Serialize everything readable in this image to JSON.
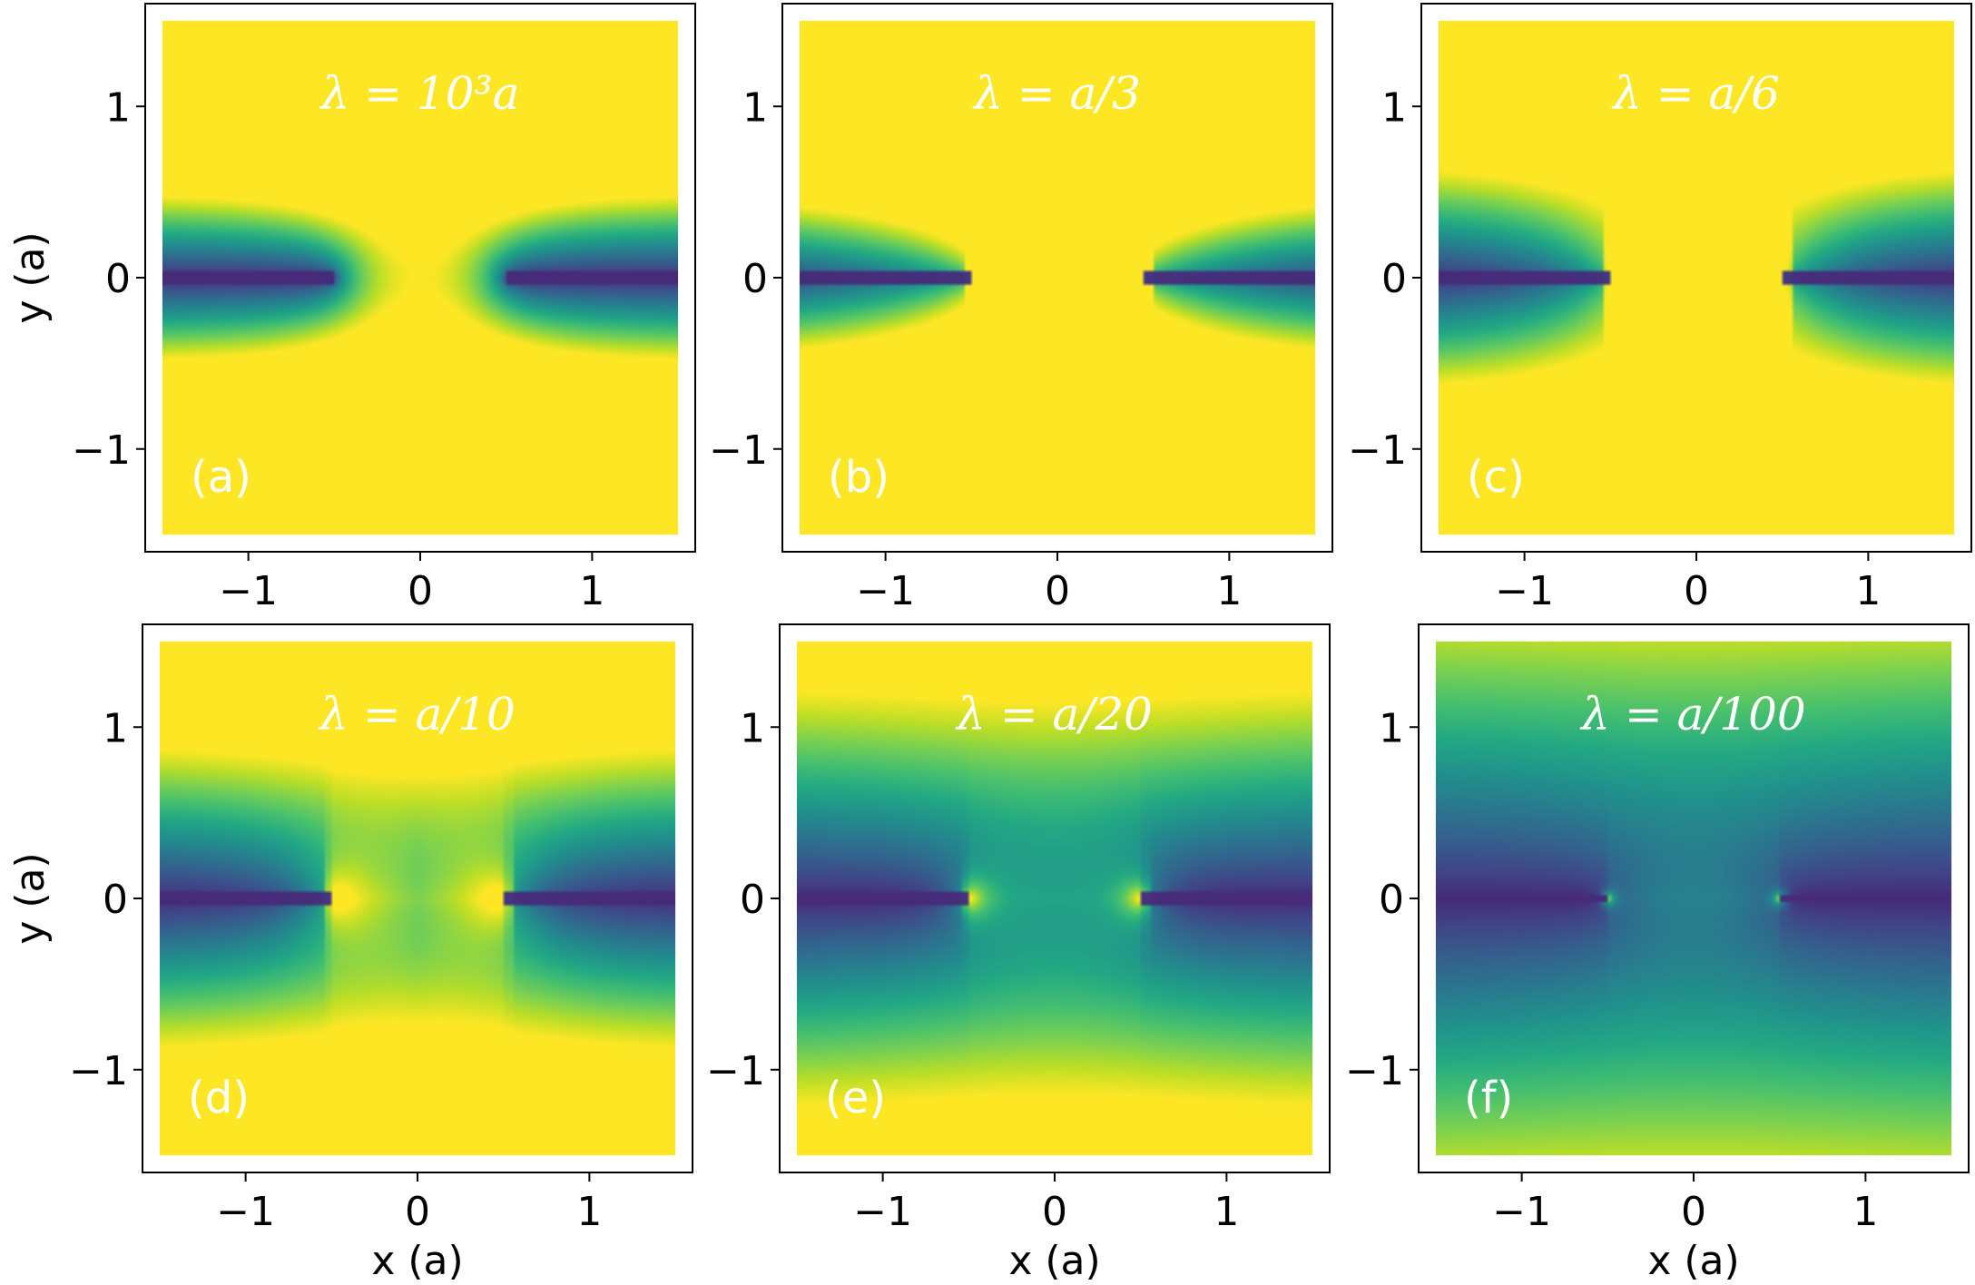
{
  "chart_data": {
    "type": "heatmap",
    "colormap": "viridis",
    "shared_axes": {
      "xlabel": "x (a)",
      "ylabel": "y (a)",
      "xlim": [
        -1.5,
        1.5
      ],
      "ylim": [
        -1.5,
        1.5
      ],
      "xticks": [
        -1,
        0,
        1
      ],
      "yticks": [
        -1,
        0,
        1
      ],
      "xtick_labels": [
        "−1",
        "0",
        "1"
      ],
      "ytick_labels": [
        "−1",
        "0",
        "1"
      ]
    },
    "slit_half_width": 0.5,
    "panels": [
      {
        "tag": "(a)",
        "title": "λ = 10³a",
        "lambda_over_a": 1000
      },
      {
        "tag": "(b)",
        "title": "λ = a/3",
        "lambda_over_a": 0.3333
      },
      {
        "tag": "(c)",
        "title": "λ = a/6",
        "lambda_over_a": 0.1667
      },
      {
        "tag": "(d)",
        "title": "λ = a/10",
        "lambda_over_a": 0.1
      },
      {
        "tag": "(e)",
        "title": "λ = a/20",
        "lambda_over_a": 0.05
      },
      {
        "tag": "(f)",
        "title": "λ = a/100",
        "lambda_over_a": 0.01
      }
    ],
    "grid": false,
    "legend": "none"
  }
}
